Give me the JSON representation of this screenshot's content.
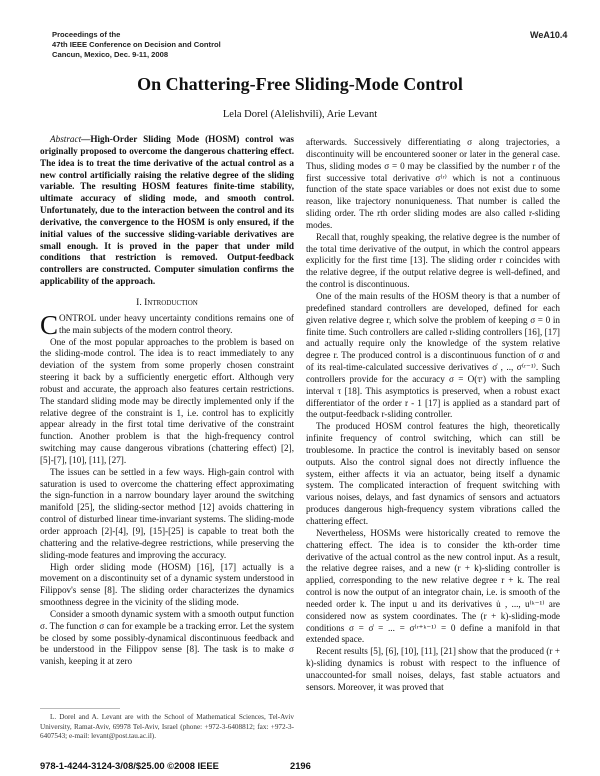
{
  "header": {
    "proceedings": [
      "Proceedings of the",
      "47th IEEE Conference on Decision and Control",
      "Cancun, Mexico, Dec. 9-11, 2008"
    ],
    "session": "WeA10.4"
  },
  "title": "On Chattering-Free Sliding-Mode Control",
  "authors": "Lela Dorel (Alelishvili), Arie Levant",
  "abstract": {
    "label": "Abstract",
    "text": "—High-Order Sliding Mode (HOSM) control was originally proposed to overcome the dangerous chattering effect. The idea is to treat the time derivative of the actual control as a new control artificially raising the relative degree of the sliding variable. The resulting HOSM features finite-time stability, ultimate accuracy of sliding mode, and smooth control. Unfortunately, due to the interaction between the control and its derivative, the convergence to the HOSM is only ensured, if the initial values of the successive sliding-variable derivatives are small enough. It is proved in the paper that under mild conditions that restriction is removed. Output-feedback controllers are constructed. Computer simulation confirms the applicability of the approach."
  },
  "section1": {
    "heading": "I. Introduction",
    "drop_cap": "C",
    "first_paragraph": "ONTROL under heavy uncertainty conditions remains one of the main subjects of the modern control theory.",
    "left_paragraphs": [
      "One of the most popular approaches to the problem is based on the sliding-mode control. The idea is to react immediately to any deviation of the system from some properly chosen constraint steering it back by a sufficiently energetic effort. Although very robust and accurate, the approach also features certain restrictions. The standard sliding mode may be directly implemented only if the relative degree of the constraint is 1, i.e. control has to explicitly appear already in the first total time derivative of the constraint function. Another problem is that the high-frequency control switching may cause dangerous vibrations (chattering effect) [2], [5]-[7], [10], [11], [27].",
      "The issues can be settled in a few ways. High-gain control with saturation is used to overcome the chattering effect approximating the sign-function in a narrow boundary layer around the switching manifold [25], the sliding-sector method [12] avoids chattering in control of disturbed linear time-invariant systems. The sliding-mode order approach [2]-[4], [9], [15]-[25] is capable to treat both the chattering and the relative-degree restrictions, while preserving the sliding-mode features and improving the accuracy.",
      "High order sliding mode (HOSM) [16], [17] actually is a movement on a discontinuity set of a dynamic system understood in Filippov's sense [8]. The sliding order characterizes the dynamics smoothness degree in the vicinity of the sliding mode.",
      "Consider a smooth dynamic system with a smooth output function σ. The function σ can for example be a tracking error. Let the system be closed by some possibly-dynamical discontinuous feedback and be understood in the Filippov sense [8]. The task is to make σ vanish, keeping it at zero"
    ],
    "right_continuation": "afterwards. Successively differentiating σ along trajectories, a discontinuity will be encountered sooner or later in the general case. Thus, sliding modes σ = 0 may be classified by the number r of the first successive total derivative σ⁽ʳ⁾ which is not a continuous function of the state space variables or does not exist due to some reason, like trajectory nonuniqueness. That number is called the sliding order. The rth order sliding modes are also called r-sliding modes.",
    "right_paragraphs": [
      "Recall that, roughly speaking, the relative degree is the number of the total time derivative of the output, in which the control appears explicitly for the first time [13]. The sliding order r coincides with the relative degree, if the output relative degree is well-defined, and the control is discontinuous.",
      "One of the main results of the HOSM theory is that a number of predefined standard controllers are developed, defined for each given relative degree r, which solve the problem of keeping σ = 0 in finite time. Such controllers are called r-sliding controllers [16], [17] and actually require only the knowledge of the system relative degree r. The produced control is a discontinuous function of σ and of its real-time-calculated successive derivatives σ̇ , .., σ⁽ʳ⁻¹⁾. Such controllers provide for the accuracy σ = O(τʳ) with the sampling interval τ [18]. This asymptotics is preserved, when a robust exact differentiator of the order r - 1 [17] is applied as a standard part of the output-feedback r-sliding controller.",
      "The produced HOSM control features the high, theoretically infinite frequency of control switching, which can still be troublesome. In practice the control is inevitably based on sensor outputs. Also the control signal does not directly influence the system, either affects it via an actuator, being itself a dynamic system. The complicated interaction of frequent switching with various noises, delays, and fast dynamics of sensors and actuators produces dangerous high-frequency system vibrations called the chattering effect.",
      "Nevertheless, HOSMs were historically created to remove the chattering effect. The idea is to consider the kth-order time derivative of the actual control as the new control input. As a result, the relative degree raises, and a new (r + k)-sliding controller is applied, corresponding to the new relative degree r + k. The real control is now the output of an integrator chain, i.e. is smooth of the needed order k. The input u and its derivatives u̇ , ..., u⁽ᵏ⁻¹⁾ are considered now as system coordinates. The (r + k)-sliding-mode conditions σ = σ̇ = ... = σ⁽ʳ⁺ᵏ⁻¹⁾ = 0 define a manifold in that extended space.",
      "Recent results [5], [6], [10], [11], [21] show that the produced (r + k)-sliding dynamics is robust with respect to the influence of unaccounted-for small noises, delays, fast stable actuators and sensors. Moreover, it was proved that"
    ]
  },
  "footnote": "L. Dorel and A. Levant are with the School of Mathematical Sciences, Tel-Aviv University, Ramat-Aviv, 69978 Tel-Aviv, Israel (phone: +972-3-6408812; fax: +972-3-6407543; e-mail: levant@post.tau.ac.il).",
  "footer": {
    "isbn": "978-1-4244-3124-3/08/$25.00 ©2008 IEEE",
    "page": "2196"
  }
}
